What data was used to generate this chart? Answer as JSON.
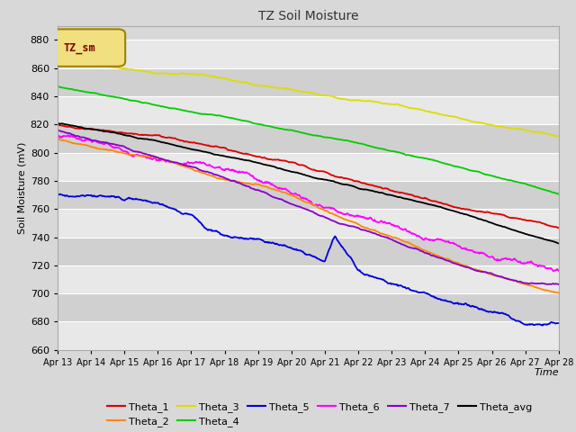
{
  "title": "TZ Soil Moisture",
  "xlabel": "Time",
  "ylabel": "Soil Moisture (mV)",
  "ylim": [
    660,
    890
  ],
  "background_color": "#d8d8d8",
  "plot_bg_color": "#d8d8d8",
  "band_colors": [
    "#e8e8e8",
    "#d0d0d0"
  ],
  "grid_color": "#ffffff",
  "legend_label": "TZ_sm",
  "legend_box_facecolor": "#f0e080",
  "legend_box_edgecolor": "#a08000",
  "legend_text_color": "#800000",
  "colors": {
    "Theta_1": "#dd0000",
    "Theta_2": "#ff8800",
    "Theta_3": "#dddd00",
    "Theta_4": "#00cc00",
    "Theta_5": "#0000dd",
    "Theta_6": "#ff00ff",
    "Theta_7": "#8800cc",
    "Theta_avg": "#000000"
  },
  "tick_labels": [
    "Apr 13",
    "Apr 14",
    "Apr 15",
    "Apr 16",
    "Apr 17",
    "Apr 18",
    "Apr 19",
    "Apr 20",
    "Apr 21",
    "Apr 22",
    "Apr 23",
    "Apr 24",
    "Apr 25",
    "Apr 26",
    "Apr 27",
    "Apr 28"
  ],
  "yticks": [
    660,
    680,
    700,
    720,
    740,
    760,
    780,
    800,
    820,
    840,
    860,
    880
  ]
}
